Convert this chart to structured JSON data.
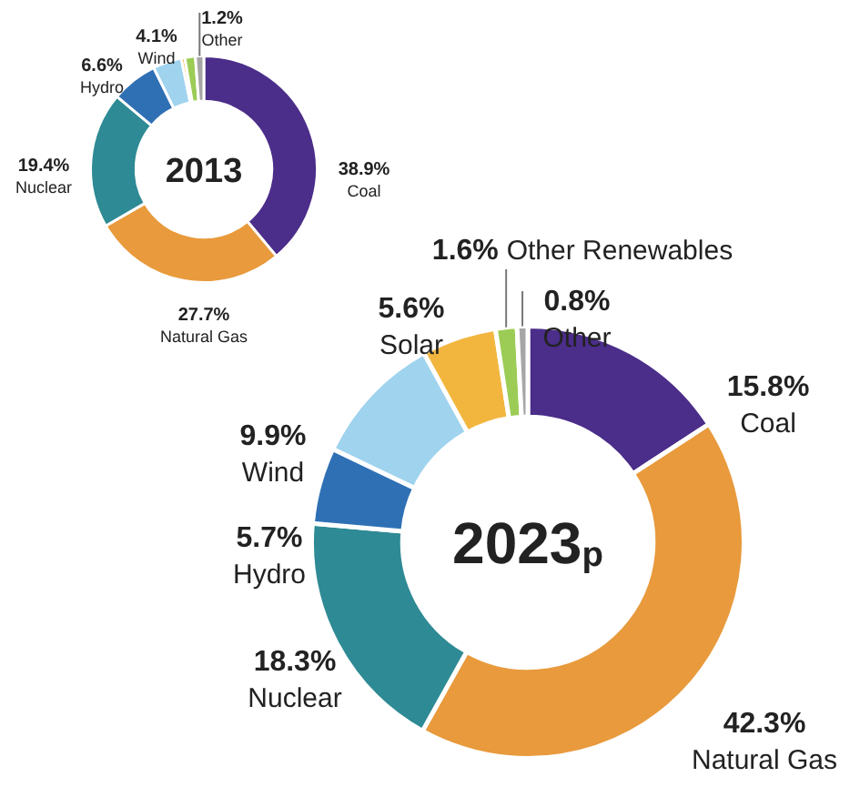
{
  "chart_data": [
    {
      "type": "donut",
      "title": "2013",
      "categories": [
        "Coal",
        "Natural Gas",
        "Nuclear",
        "Hydro",
        "Wind",
        null,
        null,
        "Other"
      ],
      "values": [
        38.9,
        27.7,
        19.4,
        6.6,
        4.1,
        0.5,
        1.5,
        1.2
      ],
      "value_labels": [
        "38.9%",
        "27.7%",
        "19.4%",
        "6.6%",
        "4.1%",
        null,
        null,
        "1.2%"
      ],
      "colors": [
        "#4b2d8a",
        "#e89a3c",
        "#2e8a94",
        "#2f70b5",
        "#9fd3ee",
        "#f2b63f",
        "#9ccc55",
        "#a6a6a6"
      ]
    },
    {
      "type": "donut",
      "title": "2023$_{p}$",
      "categories": [
        "Coal",
        "Natural Gas",
        "Nuclear",
        "Hydro",
        "Wind",
        "Solar",
        "Other Renewables",
        "Other"
      ],
      "values": [
        15.8,
        42.3,
        18.3,
        5.7,
        9.9,
        5.6,
        1.6,
        0.8
      ],
      "value_labels": [
        "15.8%",
        "42.3%",
        "18.3%",
        "5.7%",
        "9.9%",
        "5.6%",
        "1.6%",
        "0.8%"
      ],
      "colors": [
        "#4b2d8a",
        "#e89a3c",
        "#2e8a94",
        "#2f70b5",
        "#9fd3ee",
        "#f2b63f",
        "#9ccc55",
        "#a6a6a6"
      ]
    }
  ]
}
